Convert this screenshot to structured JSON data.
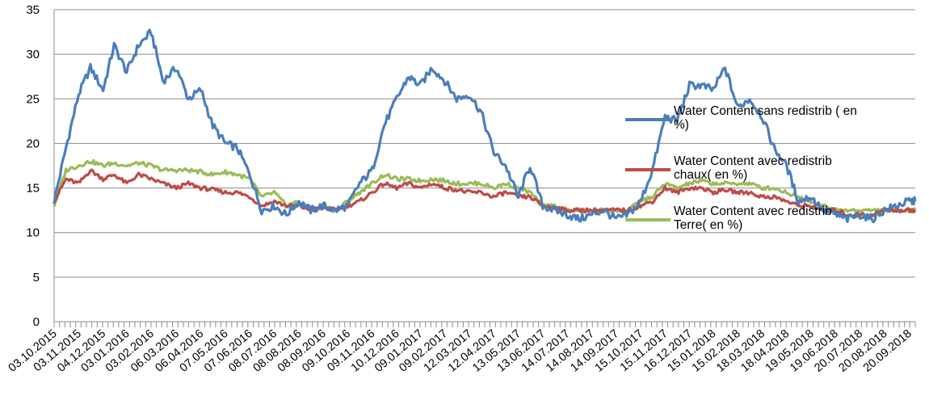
{
  "chart_data": {
    "type": "line",
    "title": "",
    "xlabel": "",
    "ylabel": "",
    "ylim": [
      0,
      35
    ],
    "yticks": [
      0,
      5,
      10,
      15,
      20,
      25,
      30,
      35
    ],
    "grid": "horizontal",
    "legend_position": "right",
    "x_tick_labels": [
      "03.10.2015",
      "03.11.2015",
      "04.12.2015",
      "03.01.2016",
      "03.02.2016",
      "06.03.2016",
      "06.04.2016",
      "07.05.2016",
      "07.06.2016",
      "08.07.2016",
      "08.08.2016",
      "08.09.2016",
      "09.10.2016",
      "09.11.2016",
      "10.12.2016",
      "09.01.2017",
      "09.02.2017",
      "12.03.2017",
      "12.04.2017",
      "13.05.2017",
      "13.06.2017",
      "14.07.2017",
      "14.08.2017",
      "14.09.2017",
      "15.10.2017",
      "15.11.2017",
      "16.12.2017",
      "15.01.2018",
      "15.02.2018",
      "18.03.2018",
      "18.04.2018",
      "19.05.2018",
      "19.06.2018",
      "20.07.2018",
      "20.08.2018",
      "20.09.2018"
    ],
    "x": [
      "03.10.2015",
      "18.10.2015",
      "03.11.2015",
      "18.11.2015",
      "04.12.2015",
      "18.12.2015",
      "03.01.2016",
      "18.01.2016",
      "03.02.2016",
      "18.02.2016",
      "06.03.2016",
      "21.03.2016",
      "06.04.2016",
      "21.04.2016",
      "07.05.2016",
      "22.05.2016",
      "07.06.2016",
      "22.06.2016",
      "08.07.2016",
      "23.07.2016",
      "08.08.2016",
      "23.08.2016",
      "08.09.2016",
      "23.09.2016",
      "09.10.2016",
      "24.10.2016",
      "09.11.2016",
      "24.11.2016",
      "10.12.2016",
      "25.12.2016",
      "09.01.2017",
      "24.01.2017",
      "09.02.2017",
      "24.02.2017",
      "12.03.2017",
      "27.03.2017",
      "12.04.2017",
      "27.04.2017",
      "13.05.2017",
      "28.05.2017",
      "13.06.2017",
      "28.06.2017",
      "14.07.2017",
      "29.07.2017",
      "14.08.2017",
      "29.08.2017",
      "14.09.2017",
      "29.09.2017",
      "15.10.2017",
      "30.10.2017",
      "15.11.2017",
      "30.11.2017",
      "16.12.2017",
      "31.12.2017",
      "15.01.2018",
      "30.01.2018",
      "15.02.2018",
      "02.03.2018",
      "18.03.2018",
      "02.04.2018",
      "18.04.2018",
      "03.05.2018",
      "19.05.2018",
      "03.06.2018",
      "19.06.2018",
      "04.07.2018",
      "20.07.2018",
      "04.08.2018",
      "20.08.2018",
      "04.09.2018",
      "20.09.2018",
      "28.09.2018"
    ],
    "series": [
      {
        "name": "Water Content sans redistrib ( en %)",
        "color": "#4a7ebb",
        "values": [
          13.5,
          19.5,
          25.5,
          28.5,
          26.0,
          31.0,
          28.0,
          31.0,
          32.5,
          27.0,
          28.5,
          25.0,
          26.0,
          22.0,
          20.0,
          19.5,
          16.5,
          12.5,
          13.0,
          12.0,
          13.5,
          12.5,
          13.0,
          12.5,
          13.0,
          15.5,
          17.0,
          22.0,
          25.0,
          27.5,
          26.5,
          28.5,
          27.0,
          25.0,
          25.5,
          23.5,
          19.0,
          17.5,
          14.0,
          17.5,
          13.0,
          12.5,
          12.0,
          11.5,
          12.0,
          12.5,
          11.5,
          12.0,
          13.5,
          17.0,
          23.0,
          22.5,
          26.5,
          26.5,
          26.0,
          28.5,
          24.0,
          25.0,
          23.0,
          19.5,
          17.5,
          13.5,
          14.0,
          12.5,
          12.0,
          11.5,
          12.0,
          11.5,
          12.5,
          13.0,
          13.5,
          13.5
        ]
      },
      {
        "name": "Water Content avec redistrib chaux( en %)",
        "color": "#be4b48",
        "values": [
          13.5,
          16.0,
          15.5,
          17.0,
          16.0,
          16.5,
          15.5,
          16.5,
          16.0,
          15.5,
          15.0,
          15.5,
          15.0,
          14.8,
          14.5,
          14.5,
          14.0,
          13.0,
          13.5,
          13.0,
          13.0,
          12.5,
          12.8,
          12.5,
          13.0,
          13.5,
          14.5,
          15.5,
          15.0,
          15.5,
          15.0,
          15.5,
          15.0,
          14.8,
          14.5,
          14.5,
          14.0,
          14.5,
          14.0,
          14.0,
          13.0,
          12.8,
          12.5,
          12.5,
          12.5,
          12.5,
          12.5,
          12.5,
          13.0,
          13.5,
          15.0,
          14.5,
          15.0,
          15.0,
          14.5,
          14.8,
          14.5,
          14.5,
          14.0,
          14.0,
          13.5,
          13.0,
          13.0,
          12.5,
          12.5,
          12.0,
          12.0,
          12.0,
          12.5,
          12.5,
          12.5,
          12.5
        ]
      },
      {
        "name": "Water Content avec redistrib Terre( en %)",
        "color": "#9bbb59",
        "values": [
          13.0,
          17.0,
          17.5,
          18.0,
          17.5,
          17.8,
          17.5,
          17.8,
          17.5,
          17.0,
          17.0,
          17.0,
          16.8,
          16.5,
          16.8,
          16.5,
          16.0,
          14.0,
          14.5,
          13.0,
          13.5,
          12.5,
          13.0,
          12.5,
          13.5,
          14.5,
          15.5,
          16.5,
          16.0,
          16.0,
          15.8,
          16.0,
          15.8,
          15.5,
          15.5,
          15.5,
          15.0,
          15.5,
          15.0,
          14.5,
          13.0,
          13.0,
          12.5,
          12.5,
          12.5,
          12.5,
          12.5,
          12.5,
          13.5,
          14.0,
          15.5,
          15.0,
          15.5,
          15.8,
          15.5,
          15.5,
          15.5,
          15.5,
          15.0,
          15.0,
          14.5,
          14.0,
          13.5,
          13.0,
          12.5,
          12.5,
          12.5,
          12.5,
          12.5,
          12.5,
          12.5,
          12.5
        ]
      }
    ]
  }
}
